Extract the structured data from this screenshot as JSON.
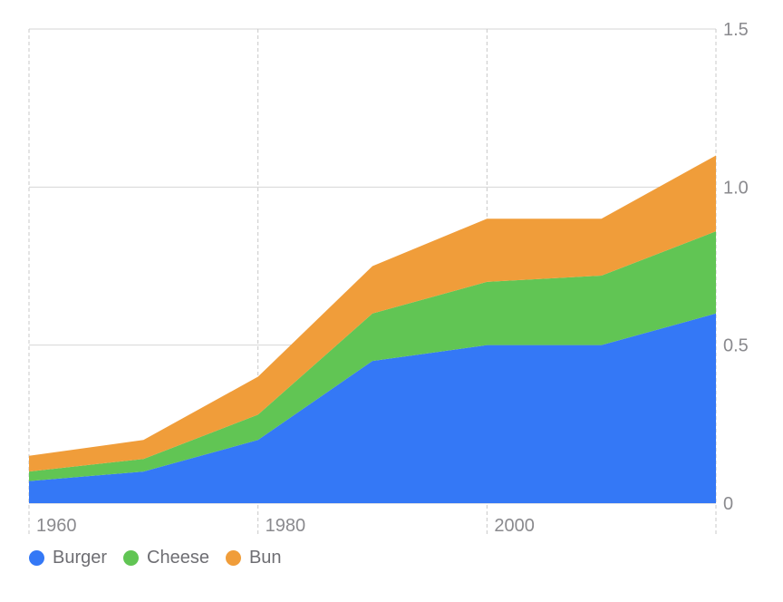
{
  "chart_data": {
    "type": "area",
    "stacked": true,
    "x": [
      1959,
      1969,
      1979,
      1989,
      1999,
      2009,
      2019
    ],
    "series": [
      {
        "name": "Burger",
        "color": "#3478f6",
        "values": [
          0.07,
          0.1,
          0.2,
          0.45,
          0.5,
          0.5,
          0.6
        ]
      },
      {
        "name": "Cheese",
        "color": "#61c554",
        "values": [
          0.03,
          0.04,
          0.08,
          0.15,
          0.2,
          0.22,
          0.26
        ]
      },
      {
        "name": "Bun",
        "color": "#f09d3a",
        "values": [
          0.05,
          0.06,
          0.12,
          0.15,
          0.2,
          0.18,
          0.24
        ]
      }
    ],
    "xlim": [
      1959,
      2019
    ],
    "ylim": [
      0,
      1.5
    ],
    "x_ticks": [
      {
        "value": 1959,
        "label": "1960"
      },
      {
        "value": 1979,
        "label": "1980"
      },
      {
        "value": 1999,
        "label": "2000"
      },
      {
        "value": 2019,
        "label": ""
      }
    ],
    "y_ticks": [
      {
        "value": 0,
        "label": "0"
      },
      {
        "value": 0.5,
        "label": "0.5"
      },
      {
        "value": 1.0,
        "label": "1.0"
      },
      {
        "value": 1.5,
        "label": "1.5"
      }
    ],
    "y_axis_position": "right",
    "grid": true,
    "legend_position": "bottom-left"
  }
}
